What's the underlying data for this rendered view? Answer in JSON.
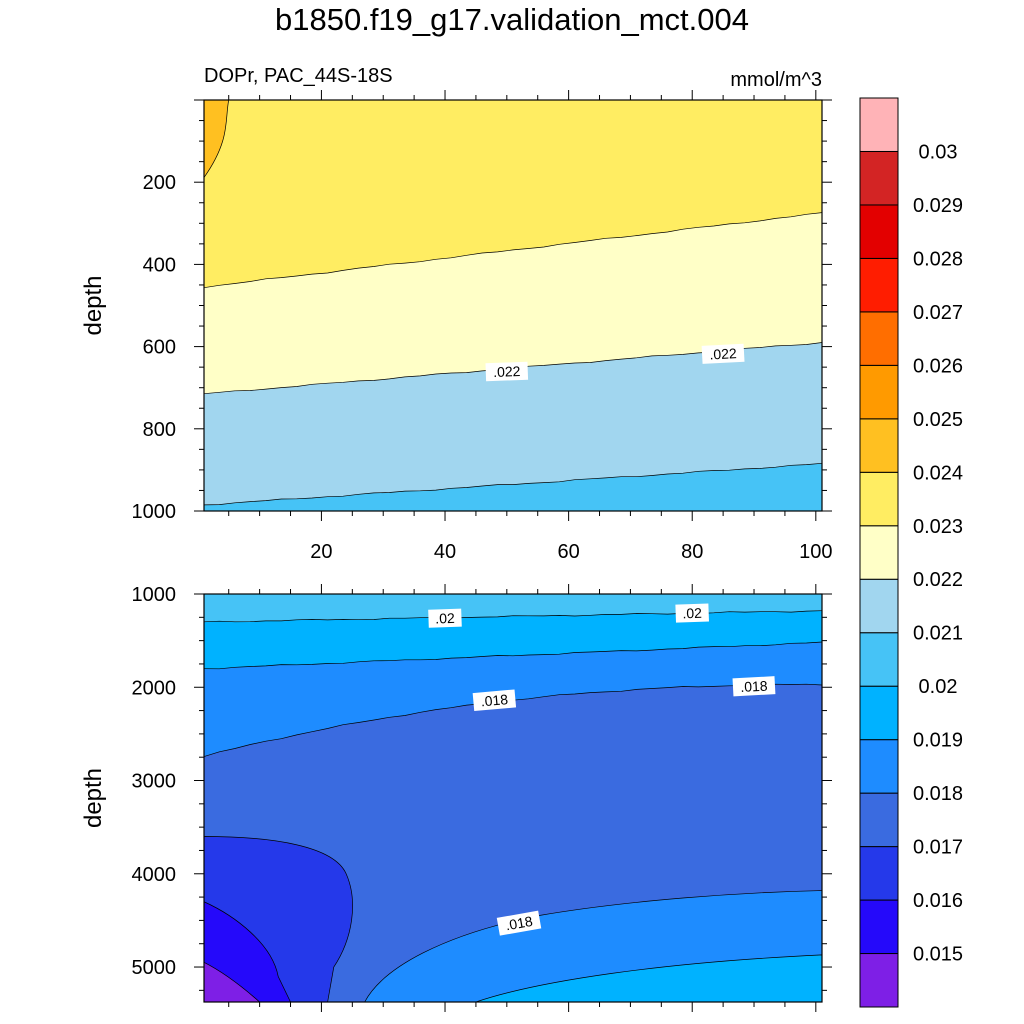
{
  "title": "b1850.f19_g17.validation_mct.004",
  "left_subtitle": "DOPr, PAC_44S-18S",
  "right_subtitle": "mmol/m^3",
  "colors": {
    "levels": [
      "#7e1fe6",
      "#2509fa",
      "#2539ea",
      "#3a6be0",
      "#1e8cff",
      "#00b2ff",
      "#46c3f6",
      "#a1d6ef",
      "#ffffc7",
      "#ffed62",
      "#ffc021",
      "#ff9a00",
      "#ff6e00",
      "#ff1d00",
      "#e30000",
      "#d32424",
      "#ffb3b7"
    ]
  },
  "chart_data": [
    {
      "type": "heatmap",
      "panel": "top",
      "ylabel": "depth",
      "xlim": [
        1,
        101
      ],
      "ylim": [
        1000,
        0
      ],
      "x_ticks": [
        20,
        40,
        60,
        80,
        100
      ],
      "x_tick_labels": [
        "20",
        "40",
        "60",
        "80",
        "100"
      ],
      "y_ticks": [
        200,
        400,
        600,
        800,
        1000
      ],
      "y_tick_labels": [
        "200",
        "400",
        "600",
        "800",
        "1000"
      ],
      "contour_labels": [
        ".022",
        ".022"
      ],
      "regions_top_to_bottom": [
        {
          "range": "0.023-0.024",
          "boundary_depth_at_x1": 455,
          "boundary_depth_at_x101": 275
        },
        {
          "range": "0.022-0.023",
          "boundary_depth_at_x1": 715,
          "boundary_depth_at_x101": 590
        },
        {
          "range": "0.021-0.022",
          "boundary_depth_at_x1": 985,
          "boundary_depth_at_x101": 885
        },
        {
          "range": "0.020-0.021",
          "boundary_depth_at_x1": 1000,
          "boundary_depth_at_x101": 1000
        }
      ],
      "corner_patch": {
        "range": "0.024-0.025",
        "x_max": 5,
        "depth_max": 145
      }
    },
    {
      "type": "heatmap",
      "panel": "bottom",
      "ylabel": "depth",
      "xlim": [
        1,
        101
      ],
      "ylim": [
        5375,
        1000
      ],
      "y_ticks": [
        1000,
        2000,
        3000,
        4000,
        5000
      ],
      "y_tick_labels": [
        "1000",
        "2000",
        "3000",
        "4000",
        "5000"
      ],
      "contour_labels": [
        ".02",
        ".02",
        ".018",
        ".018",
        ".018"
      ],
      "regions_top_to_bottom": [
        {
          "range": "0.020-0.021",
          "boundary_depth_at_x1": 1300,
          "boundary_depth_at_x101": 1180
        },
        {
          "range": "0.019-0.020",
          "boundary_depth_at_x1": 1800,
          "boundary_depth_at_x101": 1520
        },
        {
          "range": "0.018-0.019",
          "boundary_depth_at_x1": 2740,
          "boundary_depth_at_x101": 1970
        },
        {
          "range": "0.017-0.018",
          "boundary_depth_at_x1": 5375,
          "boundary_depth_at_x101": 4180
        },
        {
          "range": "0.018-0.019",
          "boundary_depth_at_x1": 5375,
          "boundary_depth_at_x101": 4870
        },
        {
          "range": "0.019-0.020",
          "boundary_depth_at_x1": 5375,
          "boundary_depth_at_x101": 5375
        }
      ],
      "deep_patches": [
        {
          "range": "0.016-0.017",
          "depth_min": 3600
        },
        {
          "range": "0.015-0.016",
          "depth_min": 4300
        },
        {
          "range": "<0.015",
          "depth_min": 4950
        }
      ]
    }
  ],
  "colorbar": {
    "labels": [
      "0.015",
      "0.016",
      "0.017",
      "0.018",
      "0.019",
      "0.02",
      "0.021",
      "0.022",
      "0.023",
      "0.024",
      "0.025",
      "0.026",
      "0.027",
      "0.028",
      "0.029",
      "0.03"
    ]
  }
}
